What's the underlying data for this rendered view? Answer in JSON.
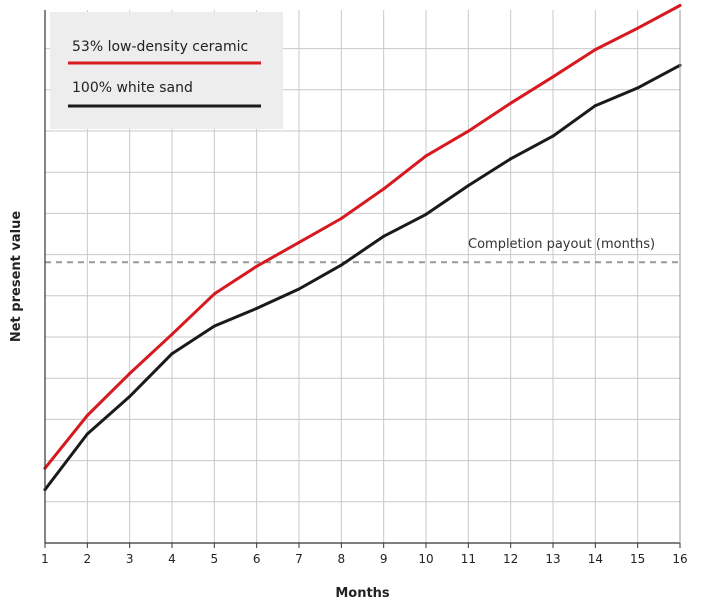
{
  "chart_data": {
    "type": "line",
    "title": "",
    "xlabel": "Months",
    "ylabel": "Net present value",
    "x": [
      1,
      2,
      3,
      4,
      5,
      6,
      7,
      8,
      9,
      10,
      11,
      12,
      13,
      14,
      15,
      16
    ],
    "xlim": [
      1,
      16
    ],
    "y_tick_labels": "none",
    "grid": true,
    "legend_position": "top-left",
    "series": [
      {
        "name": "53% low-density ceramic",
        "color": "#d71920",
        "values": [
          0.82,
          2.1,
          3.12,
          4.07,
          5.05,
          5.72,
          6.3,
          6.88,
          7.6,
          8.4,
          9.0,
          9.68,
          10.32,
          10.98,
          11.5,
          12.05
        ]
      },
      {
        "name": "100% white sand",
        "color": "#1a1a1a",
        "values": [
          0.3,
          1.65,
          2.56,
          3.6,
          4.27,
          4.7,
          5.17,
          5.75,
          6.45,
          6.98,
          7.68,
          8.33,
          8.88,
          9.62,
          10.05,
          10.6
        ]
      }
    ],
    "reference_line": {
      "label": "Completion payout (months)",
      "y": 5.82,
      "color": "#999999",
      "style": "dashed"
    }
  }
}
